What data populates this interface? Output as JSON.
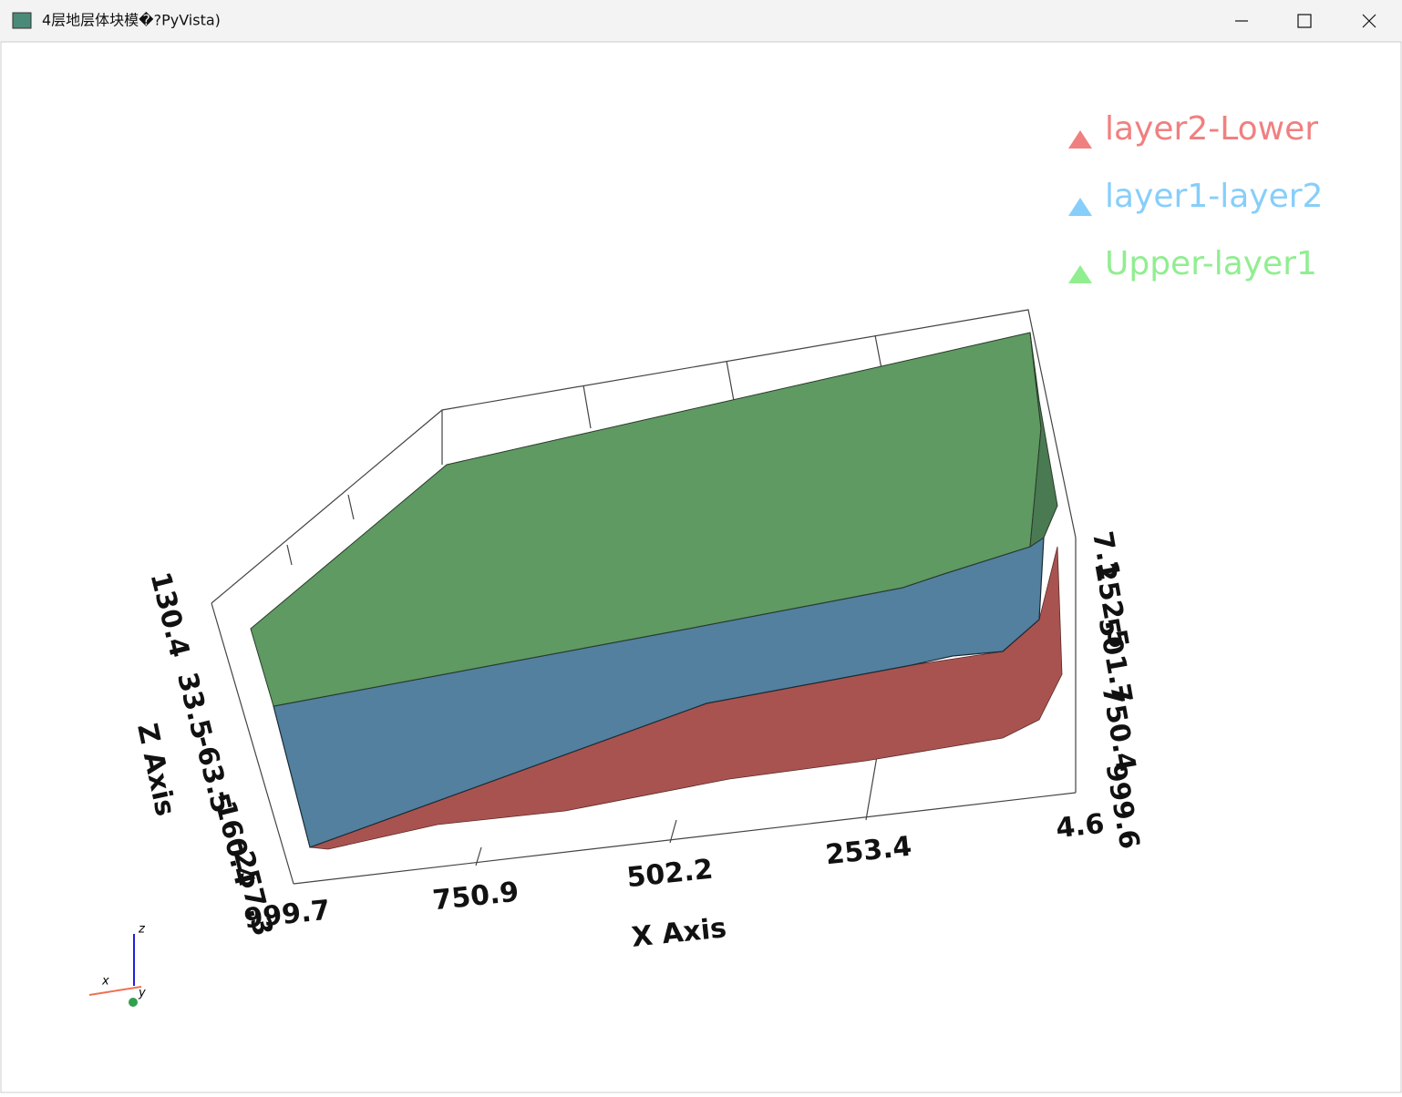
{
  "window": {
    "title": "4层地层体块模�?PyVista)"
  },
  "legend": [
    {
      "label": "layer2-Lower",
      "color": "#f08080"
    },
    {
      "label": "layer1-layer2",
      "color": "#87cefa"
    },
    {
      "label": "Upper-layer1",
      "color": "#90ee90"
    }
  ],
  "axes": {
    "x_title": "X Axis",
    "x_ticks": [
      "999.7",
      "750.9",
      "502.2",
      "253.4",
      "4.6"
    ],
    "z_title": "Z Axis",
    "z_ticks": [
      "130.4",
      "33.5",
      "-63.5",
      "-160.4",
      "-257.3"
    ],
    "y_ticks": [
      "7.1",
      "252.5",
      "501.7",
      "750.4",
      "999.6"
    ]
  },
  "orientation": {
    "x": "x",
    "y": "y",
    "z": "z"
  }
}
